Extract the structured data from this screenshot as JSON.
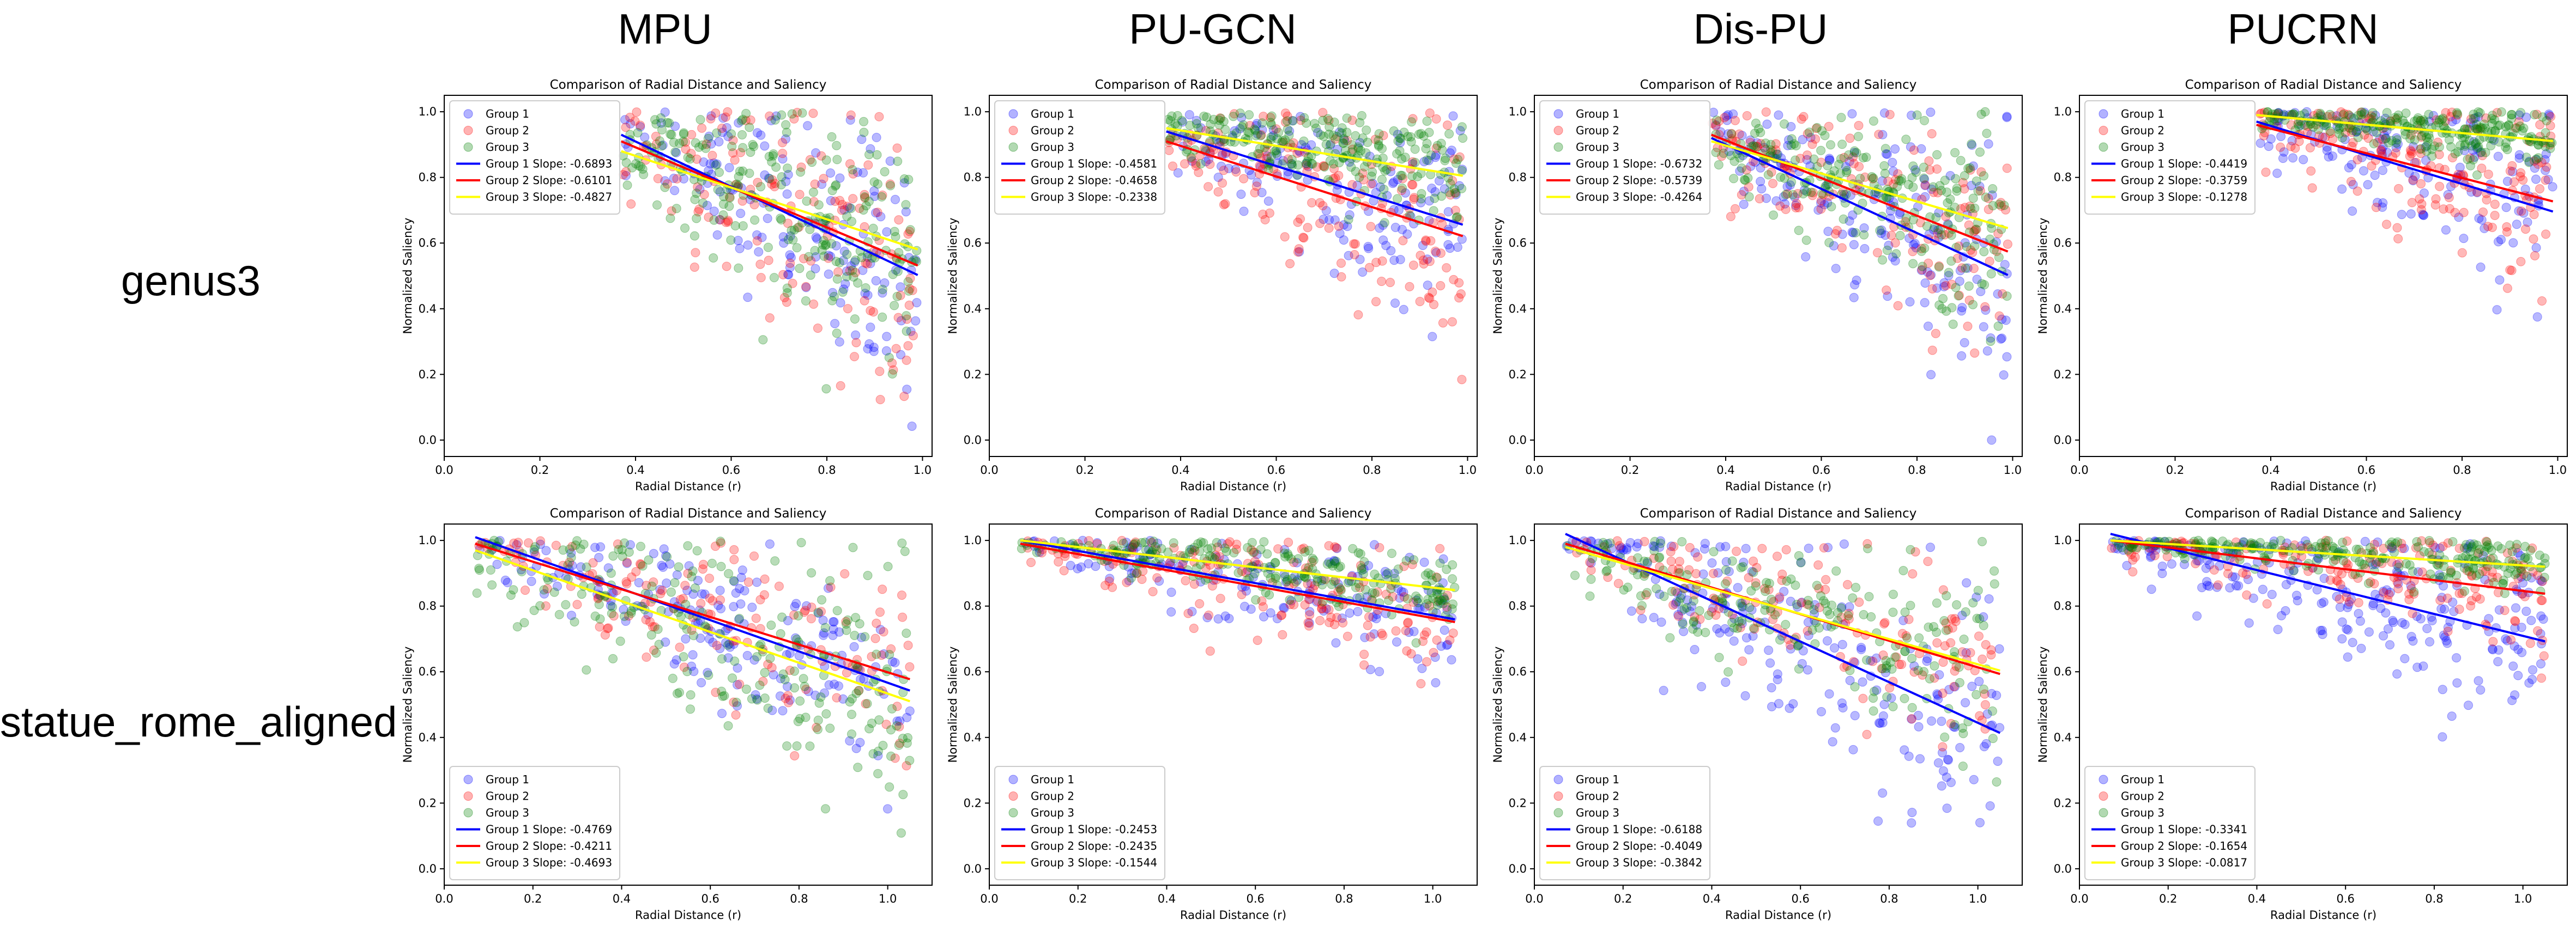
{
  "columns": [
    "MPU",
    "PU-GCN",
    "Dis-PU",
    "PUCRN"
  ],
  "rows": [
    "genus3",
    "statue_rome_aligned"
  ],
  "colors": {
    "group1": "#0000ff",
    "group2": "#ff0000",
    "group3": "#008000",
    "line3": "#ffff00"
  },
  "chart_data": [
    {
      "type": "scatter",
      "row": "genus3",
      "method": "MPU",
      "title": "Comparison of Radial Distance and Saliency",
      "xlabel": "Radial Distance (r)",
      "ylabel": "Normalized Saliency",
      "xlim": [
        0,
        1.02
      ],
      "ylim": [
        -0.05,
        1.05
      ],
      "xticks": [
        "0.0",
        "0.2",
        "0.4",
        "0.6",
        "0.8",
        "1.0"
      ],
      "yticks": [
        "0.0",
        "0.2",
        "0.4",
        "0.6",
        "0.8",
        "1.0"
      ],
      "legend_position": "upper-left",
      "x_range": [
        0.37,
        0.99
      ],
      "groups": [
        "Group 1",
        "Group 2",
        "Group 3"
      ],
      "slopes": [
        {
          "name": "Group 1 Slope: -0.6893",
          "slope": -0.6893,
          "y_at_xmin": 0.93
        },
        {
          "name": "Group 2 Slope: -0.6101",
          "slope": -0.6101,
          "y_at_xmin": 0.91
        },
        {
          "name": "Group 3 Slope: -0.4827",
          "slope": -0.4827,
          "y_at_xmin": 0.88
        }
      ],
      "cloud": [
        {
          "center": 0.92,
          "spread": 0.14,
          "density": 0.6
        },
        {
          "center": 0.9,
          "spread": 0.16,
          "density": 0.6
        },
        {
          "center": 0.86,
          "spread": 0.13,
          "density": 0.9
        }
      ]
    },
    {
      "type": "scatter",
      "row": "genus3",
      "method": "PU-GCN",
      "title": "Comparison of Radial Distance and Saliency",
      "xlabel": "Radial Distance (r)",
      "ylabel": "Normalized Saliency",
      "xlim": [
        0,
        1.02
      ],
      "ylim": [
        -0.05,
        1.05
      ],
      "xticks": [
        "0.0",
        "0.2",
        "0.4",
        "0.6",
        "0.8",
        "1.0"
      ],
      "yticks": [
        "0.0",
        "0.2",
        "0.4",
        "0.6",
        "0.8",
        "1.0"
      ],
      "legend_position": "upper-left",
      "x_range": [
        0.37,
        0.99
      ],
      "groups": [
        "Group 1",
        "Group 2",
        "Group 3"
      ],
      "slopes": [
        {
          "name": "Group 1 Slope: -0.4581",
          "slope": -0.4581,
          "y_at_xmin": 0.94
        },
        {
          "name": "Group 2 Slope: -0.4658",
          "slope": -0.4658,
          "y_at_xmin": 0.91
        },
        {
          "name": "Group 3 Slope: -0.2338",
          "slope": -0.2338,
          "y_at_xmin": 0.95
        }
      ],
      "cloud": [
        {
          "center": 0.93,
          "spread": 0.1,
          "density": 0.6
        },
        {
          "center": 0.88,
          "spread": 0.14,
          "density": 0.7
        },
        {
          "center": 0.95,
          "spread": 0.06,
          "density": 0.9
        }
      ]
    },
    {
      "type": "scatter",
      "row": "genus3",
      "method": "Dis-PU",
      "title": "Comparison of Radial Distance and Saliency",
      "xlabel": "Radial Distance (r)",
      "ylabel": "Normalized Saliency",
      "xlim": [
        0,
        1.02
      ],
      "ylim": [
        -0.05,
        1.05
      ],
      "xticks": [
        "0.0",
        "0.2",
        "0.4",
        "0.6",
        "0.8",
        "1.0"
      ],
      "yticks": [
        "0.0",
        "0.2",
        "0.4",
        "0.6",
        "0.8",
        "1.0"
      ],
      "legend_position": "upper-left",
      "x_range": [
        0.37,
        0.99
      ],
      "groups": [
        "Group 1",
        "Group 2",
        "Group 3"
      ],
      "slopes": [
        {
          "name": "Group 1 Slope: -0.6732",
          "slope": -0.6732,
          "y_at_xmin": 0.92
        },
        {
          "name": "Group 2 Slope: -0.5739",
          "slope": -0.5739,
          "y_at_xmin": 0.93
        },
        {
          "name": "Group 3 Slope: -0.4264",
          "slope": -0.4264,
          "y_at_xmin": 0.91
        }
      ],
      "cloud": [
        {
          "center": 0.9,
          "spread": 0.15,
          "density": 0.7
        },
        {
          "center": 0.92,
          "spread": 0.12,
          "density": 0.6
        },
        {
          "center": 0.91,
          "spread": 0.1,
          "density": 0.9
        }
      ]
    },
    {
      "type": "scatter",
      "row": "genus3",
      "method": "PUCRN",
      "title": "Comparison of Radial Distance and Saliency",
      "xlabel": "Radial Distance (r)",
      "ylabel": "Normalized Saliency",
      "xlim": [
        0,
        1.02
      ],
      "ylim": [
        -0.05,
        1.05
      ],
      "xticks": [
        "0.0",
        "0.2",
        "0.4",
        "0.6",
        "0.8",
        "1.0"
      ],
      "yticks": [
        "0.0",
        "0.2",
        "0.4",
        "0.6",
        "0.8",
        "1.0"
      ],
      "legend_position": "upper-left",
      "x_range": [
        0.37,
        0.99
      ],
      "groups": [
        "Group 1",
        "Group 2",
        "Group 3"
      ],
      "slopes": [
        {
          "name": "Group 1 Slope: -0.4419",
          "slope": -0.4419,
          "y_at_xmin": 0.97
        },
        {
          "name": "Group 2 Slope: -0.3759",
          "slope": -0.3759,
          "y_at_xmin": 0.96
        },
        {
          "name": "Group 3 Slope: -0.1278",
          "slope": -0.1278,
          "y_at_xmin": 0.99
        }
      ],
      "cloud": [
        {
          "center": 0.95,
          "spread": 0.1,
          "density": 0.6
        },
        {
          "center": 0.92,
          "spread": 0.12,
          "density": 0.7
        },
        {
          "center": 0.99,
          "spread": 0.03,
          "density": 0.9
        }
      ]
    },
    {
      "type": "scatter",
      "row": "statue_rome_aligned",
      "method": "MPU",
      "title": "Comparison of Radial Distance and Saliency",
      "xlabel": "Radial Distance (r)",
      "ylabel": "Normalized Saliency",
      "xlim": [
        0,
        1.1
      ],
      "ylim": [
        -0.05,
        1.05
      ],
      "xticks": [
        "0.0",
        "0.2",
        "0.4",
        "0.6",
        "0.8",
        "1.0"
      ],
      "yticks": [
        "0.0",
        "0.2",
        "0.4",
        "0.6",
        "0.8",
        "1.0"
      ],
      "legend_position": "lower-left",
      "x_range": [
        0.07,
        1.05
      ],
      "groups": [
        "Group 1",
        "Group 2",
        "Group 3"
      ],
      "slopes": [
        {
          "name": "Group 1 Slope: -0.4769",
          "slope": -0.4769,
          "y_at_xmin": 1.01
        },
        {
          "name": "Group 2 Slope: -0.4211",
          "slope": -0.4211,
          "y_at_xmin": 0.99
        },
        {
          "name": "Group 3 Slope: -0.4693",
          "slope": -0.4693,
          "y_at_xmin": 0.97
        }
      ],
      "cloud": [
        {
          "center": 1.0,
          "spread": 0.1,
          "density": 0.7
        },
        {
          "center": 0.98,
          "spread": 0.12,
          "density": 0.6
        },
        {
          "center": 0.95,
          "spread": 0.13,
          "density": 0.9
        }
      ]
    },
    {
      "type": "scatter",
      "row": "statue_rome_aligned",
      "method": "PU-GCN",
      "title": "Comparison of Radial Distance and Saliency",
      "xlabel": "Radial Distance (r)",
      "ylabel": "Normalized Saliency",
      "xlim": [
        0,
        1.1
      ],
      "ylim": [
        -0.05,
        1.05
      ],
      "xticks": [
        "0.0",
        "0.2",
        "0.4",
        "0.6",
        "0.8",
        "1.0"
      ],
      "yticks": [
        "0.0",
        "0.2",
        "0.4",
        "0.6",
        "0.8",
        "1.0"
      ],
      "legend_position": "lower-left",
      "x_range": [
        0.07,
        1.05
      ],
      "groups": [
        "Group 1",
        "Group 2",
        "Group 3"
      ],
      "slopes": [
        {
          "name": "Group 1 Slope: -0.2453",
          "slope": -0.2453,
          "y_at_xmin": 1.0
        },
        {
          "name": "Group 2 Slope: -0.2435",
          "slope": -0.2435,
          "y_at_xmin": 0.99
        },
        {
          "name": "Group 3 Slope: -0.1544",
          "slope": -0.1544,
          "y_at_xmin": 1.0
        }
      ],
      "cloud": [
        {
          "center": 0.99,
          "spread": 0.07,
          "density": 0.6
        },
        {
          "center": 0.98,
          "spread": 0.07,
          "density": 0.7
        },
        {
          "center": 0.99,
          "spread": 0.04,
          "density": 0.9
        }
      ]
    },
    {
      "type": "scatter",
      "row": "statue_rome_aligned",
      "method": "Dis-PU",
      "title": "Comparison of Radial Distance and Saliency",
      "xlabel": "Radial Distance (r)",
      "ylabel": "Normalized Saliency",
      "xlim": [
        0,
        1.1
      ],
      "ylim": [
        -0.05,
        1.05
      ],
      "xticks": [
        "0.0",
        "0.2",
        "0.4",
        "0.6",
        "0.8",
        "1.0"
      ],
      "yticks": [
        "0.0",
        "0.2",
        "0.4",
        "0.6",
        "0.8",
        "1.0"
      ],
      "legend_position": "lower-left",
      "x_range": [
        0.07,
        1.05
      ],
      "groups": [
        "Group 1",
        "Group 2",
        "Group 3"
      ],
      "slopes": [
        {
          "name": "Group 1 Slope: -0.6188",
          "slope": -0.6188,
          "y_at_xmin": 1.02
        },
        {
          "name": "Group 2 Slope: -0.4049",
          "slope": -0.4049,
          "y_at_xmin": 0.99
        },
        {
          "name": "Group 3 Slope: -0.3842",
          "slope": -0.3842,
          "y_at_xmin": 0.98
        }
      ],
      "cloud": [
        {
          "center": 0.98,
          "spread": 0.15,
          "density": 0.8
        },
        {
          "center": 0.97,
          "spread": 0.1,
          "density": 0.6
        },
        {
          "center": 0.97,
          "spread": 0.1,
          "density": 0.8
        }
      ]
    },
    {
      "type": "scatter",
      "row": "statue_rome_aligned",
      "method": "PUCRN",
      "title": "Comparison of Radial Distance and Saliency",
      "xlabel": "Radial Distance (r)",
      "ylabel": "Normalized Saliency",
      "xlim": [
        0,
        1.1
      ],
      "ylim": [
        -0.05,
        1.05
      ],
      "xticks": [
        "0.0",
        "0.2",
        "0.4",
        "0.6",
        "0.8",
        "1.0"
      ],
      "yticks": [
        "0.0",
        "0.2",
        "0.4",
        "0.6",
        "0.8",
        "1.0"
      ],
      "legend_position": "lower-left",
      "x_range": [
        0.07,
        1.05
      ],
      "groups": [
        "Group 1",
        "Group 2",
        "Group 3"
      ],
      "slopes": [
        {
          "name": "Group 1 Slope: -0.3341",
          "slope": -0.3341,
          "y_at_xmin": 1.02
        },
        {
          "name": "Group 2 Slope: -0.1654",
          "slope": -0.1654,
          "y_at_xmin": 1.0
        },
        {
          "name": "Group 3 Slope: -0.0817",
          "slope": -0.0817,
          "y_at_xmin": 1.0
        }
      ],
      "cloud": [
        {
          "center": 0.98,
          "spread": 0.1,
          "density": 0.9
        },
        {
          "center": 0.97,
          "spread": 0.07,
          "density": 0.7
        },
        {
          "center": 0.99,
          "spread": 0.03,
          "density": 0.9
        }
      ]
    }
  ]
}
